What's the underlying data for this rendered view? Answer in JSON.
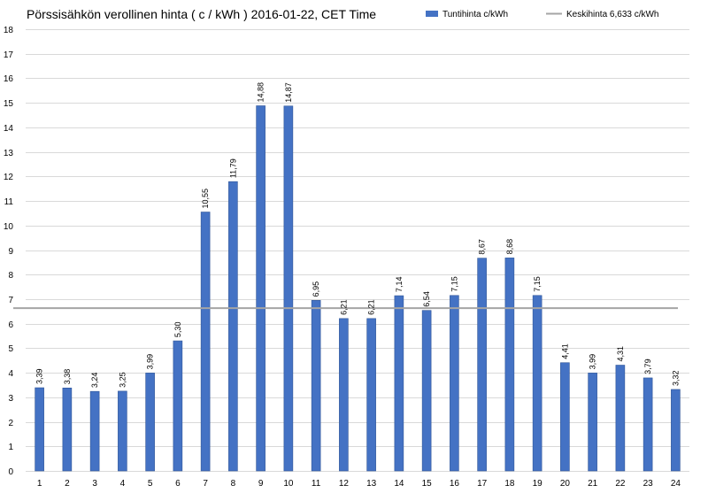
{
  "chart_data": {
    "type": "bar",
    "title": "Pörssisähkön verollinen hinta ( c / kWh ) 2016-01-22, CET Time",
    "xlabel": "",
    "ylabel": "",
    "ylim": [
      0,
      18
    ],
    "yticks": [
      0,
      1,
      2,
      3,
      4,
      5,
      6,
      7,
      8,
      9,
      10,
      11,
      12,
      13,
      14,
      15,
      16,
      17,
      18
    ],
    "grid": true,
    "legend_position": "top-right",
    "categories": [
      "1",
      "2",
      "3",
      "4",
      "5",
      "6",
      "7",
      "8",
      "9",
      "10",
      "11",
      "12",
      "13",
      "14",
      "15",
      "16",
      "17",
      "18",
      "19",
      "20",
      "21",
      "22",
      "23",
      "24"
    ],
    "series": [
      {
        "name": "Tuntihinta c/kWh",
        "color": "#4472c4",
        "values": [
          3.39,
          3.38,
          3.24,
          3.25,
          3.99,
          5.3,
          10.55,
          11.79,
          14.88,
          14.87,
          6.95,
          6.21,
          6.21,
          7.14,
          6.54,
          7.15,
          8.67,
          8.68,
          7.15,
          4.41,
          3.99,
          4.31,
          3.79,
          3.32
        ],
        "labels": [
          "3,39",
          "3,38",
          "3,24",
          "3,25",
          "3,99",
          "5,30",
          "10,55",
          "11,79",
          "14,88",
          "14,87",
          "6,95",
          "6,21",
          "6,21",
          "7,14",
          "6,54",
          "7,15",
          "8,67",
          "8,68",
          "7,15",
          "4,41",
          "3,99",
          "4,31",
          "3,79",
          "3,32"
        ]
      }
    ],
    "reference_line": {
      "name": "Keskihinta 6,633 c/kWh",
      "value": 6.633,
      "color": "#a5a5a5"
    }
  }
}
